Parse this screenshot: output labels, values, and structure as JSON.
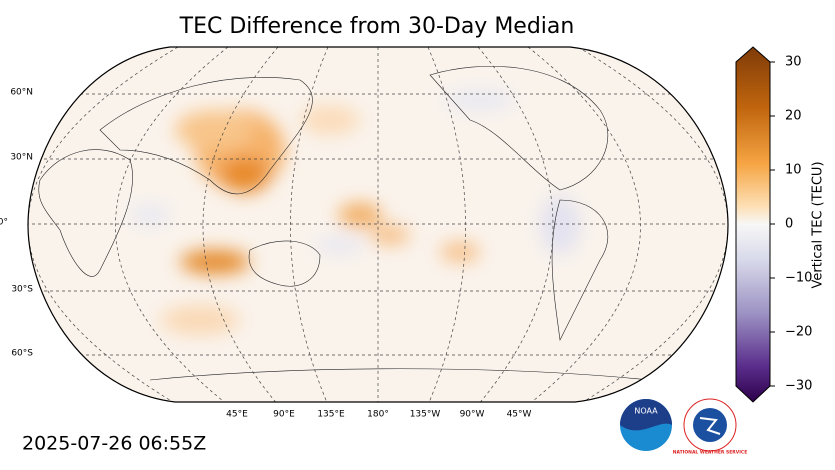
{
  "title": "TEC Difference from 30-Day Median",
  "timestamp": "2025-07-26 06:55Z",
  "map": {
    "lat_labels": [
      "60°N",
      "30°N",
      "0°",
      "30°S",
      "60°S"
    ],
    "lon_labels": [
      "45°E",
      "90°E",
      "135°E",
      "180°",
      "135°W",
      "90°W",
      "45°W"
    ]
  },
  "colorbar": {
    "label": "Vertical TEC (TECU)",
    "lim": [
      -30,
      30
    ],
    "ticks": [
      30,
      20,
      10,
      0,
      {
        "value": -10,
        "label": "−10"
      },
      {
        "value": -20,
        "label": "−20"
      },
      {
        "value": -30,
        "label": "−30"
      }
    ]
  },
  "logos": {
    "noaa": "NOAA",
    "nws": "NATIONAL WEATHER SERVICE"
  }
}
